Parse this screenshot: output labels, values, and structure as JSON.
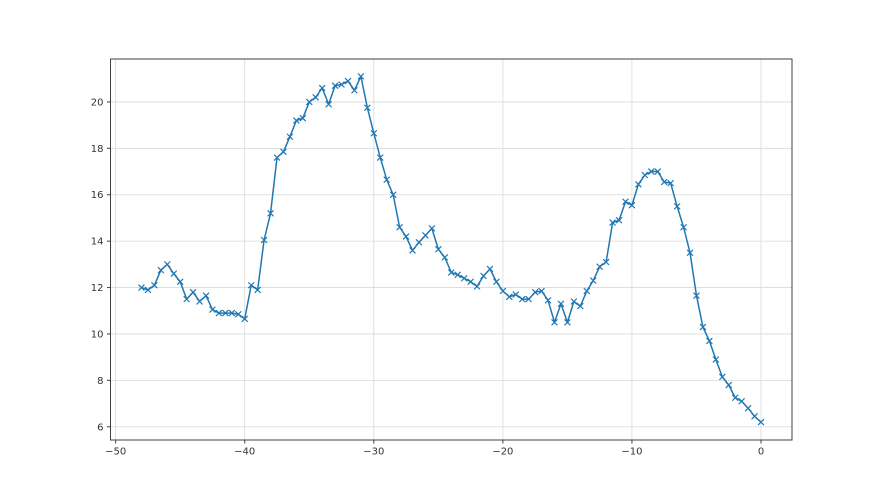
{
  "chart_data": {
    "type": "line",
    "title": "",
    "xlabel": "",
    "ylabel": "",
    "grid": true,
    "legend_position": "none",
    "xlim": [
      -50.4,
      2.4
    ],
    "ylim": [
      5.43,
      21.85
    ],
    "xticks": {
      "positions": [
        -50,
        -40,
        -30,
        -20,
        -10,
        0
      ],
      "labels": [
        "−50",
        "−40",
        "−30",
        "−20",
        "−10",
        "0"
      ]
    },
    "yticks": {
      "positions": [
        6,
        8,
        10,
        12,
        14,
        16,
        18,
        20
      ],
      "labels": [
        "6",
        "8",
        "10",
        "12",
        "14",
        "16",
        "18",
        "20"
      ]
    },
    "x": [
      -48.0,
      -47.5,
      -47.0,
      -46.5,
      -46.0,
      -45.5,
      -45.0,
      -44.5,
      -44.0,
      -43.5,
      -43.0,
      -42.5,
      -42.0,
      -41.5,
      -41.0,
      -40.5,
      -40.0,
      -39.5,
      -39.0,
      -38.5,
      -38.0,
      -37.5,
      -37.0,
      -36.5,
      -36.0,
      -35.5,
      -35.0,
      -34.5,
      -34.0,
      -33.5,
      -33.0,
      -32.5,
      -32.0,
      -31.5,
      -31.0,
      -30.5,
      -30.0,
      -29.5,
      -29.0,
      -28.5,
      -28.0,
      -27.5,
      -27.0,
      -26.5,
      -26.0,
      -25.5,
      -25.0,
      -24.5,
      -24.0,
      -23.5,
      -23.0,
      -22.5,
      -22.0,
      -21.5,
      -21.0,
      -20.5,
      -20.0,
      -19.5,
      -19.0,
      -18.5,
      -18.0,
      -17.5,
      -17.0,
      -16.5,
      -16.0,
      -15.5,
      -15.0,
      -14.5,
      -14.0,
      -13.5,
      -13.0,
      -12.5,
      -12.0,
      -11.5,
      -11.0,
      -10.5,
      -10.0,
      -9.5,
      -9.0,
      -8.5,
      -8.0,
      -7.5,
      -7.0,
      -6.5,
      -6.0,
      -5.5,
      -5.0,
      -4.5,
      -4.0,
      -3.5,
      -3.0,
      -2.5,
      -2.0,
      -1.5,
      -1.0,
      -0.5,
      0.0
    ],
    "series": [
      {
        "name": "series-1",
        "marker": "x",
        "color": "#1f77b4",
        "values": [
          12.0,
          11.9,
          12.1,
          12.75,
          13.0,
          12.6,
          12.25,
          11.5,
          11.8,
          11.4,
          11.65,
          11.05,
          10.9,
          10.9,
          10.9,
          10.85,
          10.65,
          12.1,
          11.9,
          14.05,
          15.2,
          17.6,
          17.85,
          18.5,
          19.2,
          19.3,
          20.0,
          20.2,
          20.6,
          19.9,
          20.7,
          20.75,
          20.9,
          20.5,
          21.1,
          19.75,
          18.65,
          17.6,
          16.65,
          16.0,
          14.6,
          14.2,
          13.6,
          13.95,
          14.25,
          14.55,
          13.65,
          13.3,
          12.65,
          12.55,
          12.4,
          12.25,
          12.05,
          12.5,
          12.8,
          12.25,
          11.85,
          11.6,
          11.7,
          11.5,
          11.5,
          11.8,
          11.85,
          11.45,
          10.5,
          11.3,
          10.5,
          11.4,
          11.2,
          11.85,
          12.3,
          12.9,
          13.1,
          14.8,
          14.9,
          15.7,
          15.55,
          16.45,
          16.85,
          17.0,
          17.0,
          16.55,
          16.5,
          15.5,
          14.6,
          13.5,
          11.65,
          10.3,
          9.7,
          8.9,
          8.15,
          7.8,
          7.25,
          7.1,
          6.8,
          6.45,
          6.2
        ]
      }
    ]
  },
  "figure": {
    "background": "#ffffff",
    "grid_color": "#d9d9d9",
    "spine_color": "#404040",
    "tick_color": "#404040",
    "tick_label_color": "#333333"
  }
}
